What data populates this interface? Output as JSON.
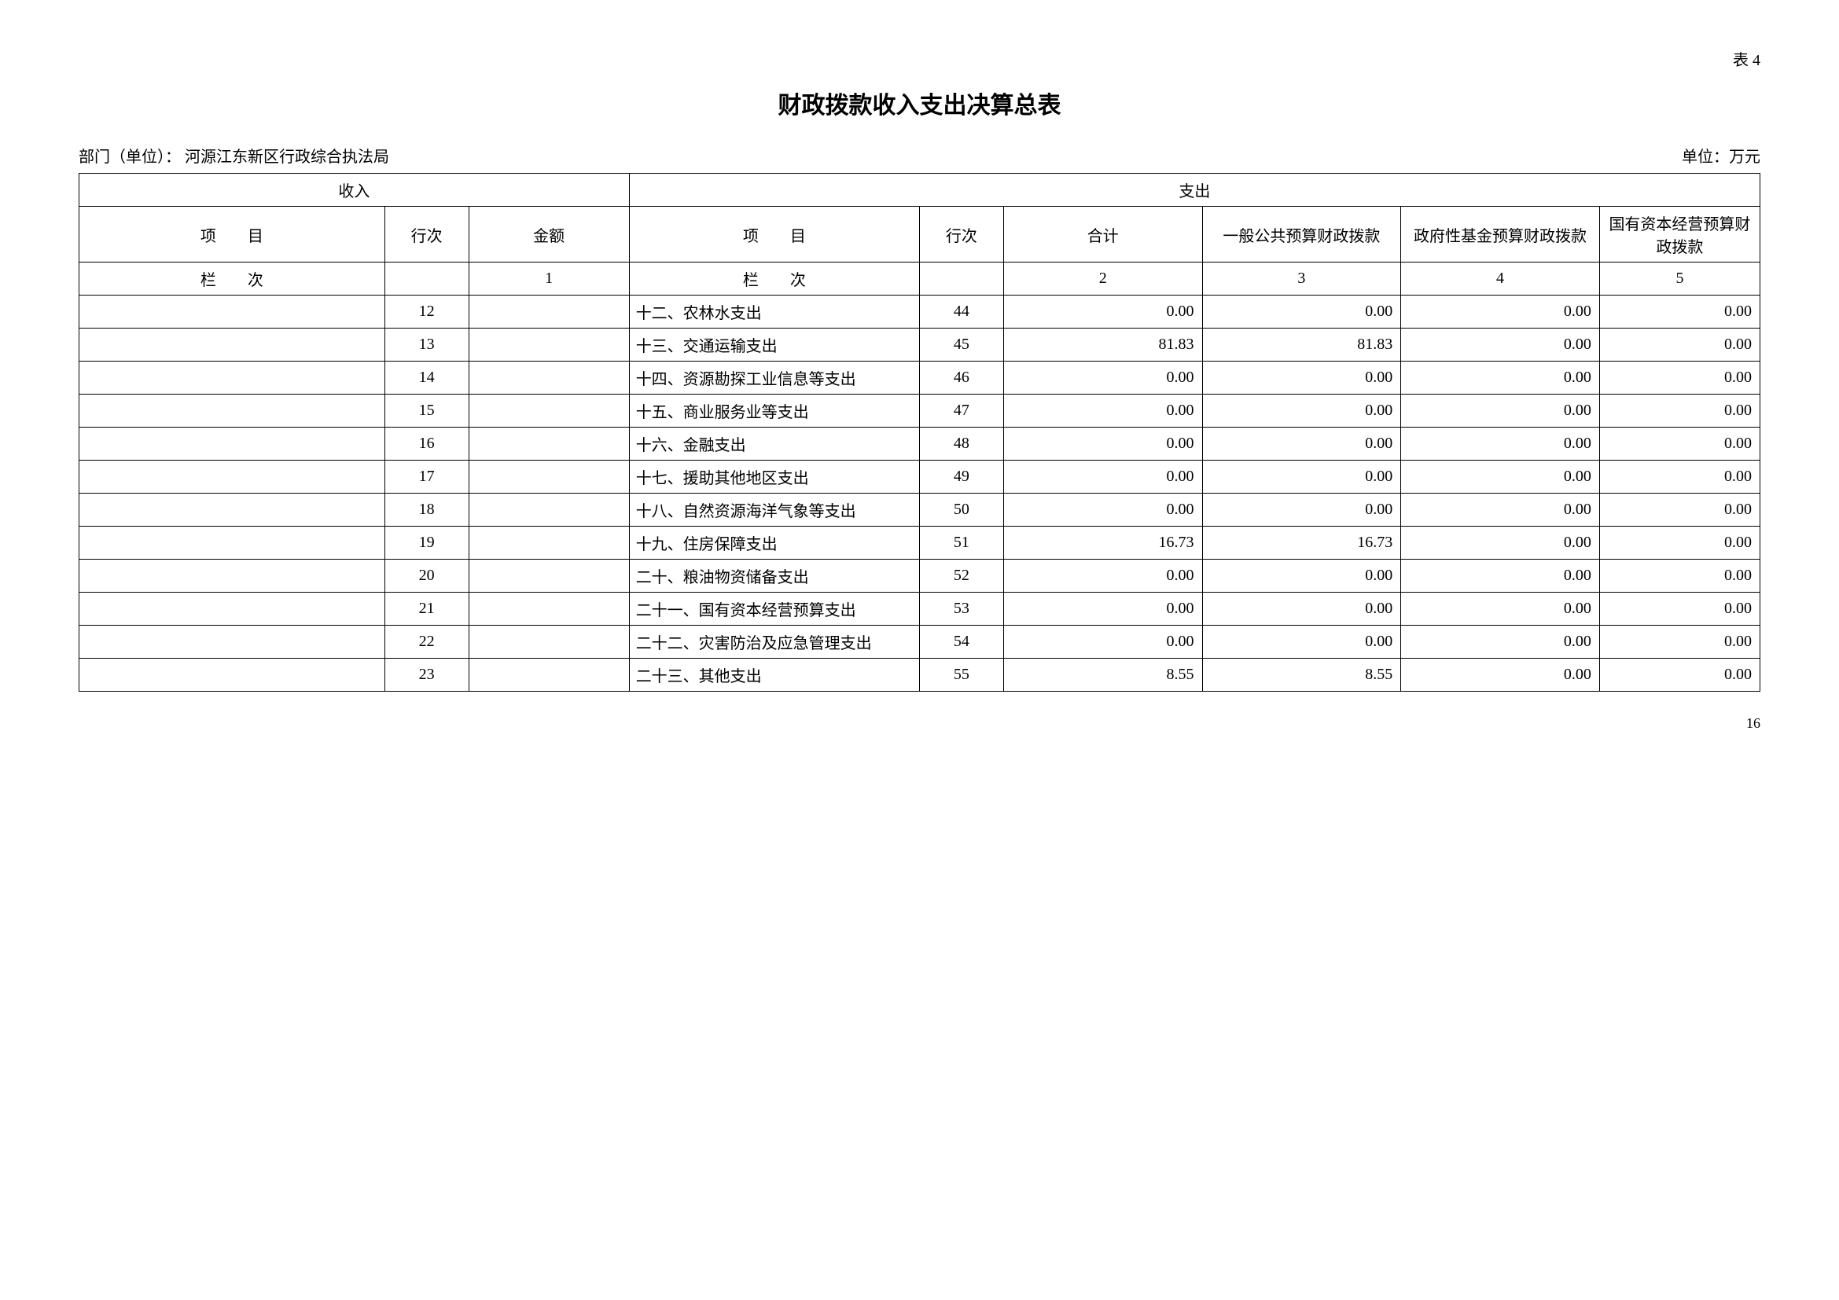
{
  "tableNumber": "表 4",
  "title": "财政拨款收入支出决算总表",
  "department": {
    "label": "部门（单位）：",
    "value": "河源江东新区行政综合执法局"
  },
  "unit": "单位：万元",
  "headers": {
    "income": "收入",
    "expense": "支出",
    "item": "项　　目",
    "rowNum": "行次",
    "amount": "金额",
    "total": "合计",
    "general": "一般公共预算财政拨款",
    "fund": "政府性基金预算财政拨款",
    "capital": "国有资本经营预算财政拨款",
    "columnLabel": "栏　　次",
    "col1": "1",
    "col2": "2",
    "col3": "3",
    "col4": "4",
    "col5": "5"
  },
  "rows": [
    {
      "incomeItem": "",
      "incomeRow": "12",
      "incomeAmount": "",
      "expenseItem": "十二、农林水支出",
      "expenseRow": "44",
      "total": "0.00",
      "general": "0.00",
      "fund": "0.00",
      "capital": "0.00"
    },
    {
      "incomeItem": "",
      "incomeRow": "13",
      "incomeAmount": "",
      "expenseItem": "十三、交通运输支出",
      "expenseRow": "45",
      "total": "81.83",
      "general": "81.83",
      "fund": "0.00",
      "capital": "0.00"
    },
    {
      "incomeItem": "",
      "incomeRow": "14",
      "incomeAmount": "",
      "expenseItem": "十四、资源勘探工业信息等支出",
      "expenseRow": "46",
      "total": "0.00",
      "general": "0.00",
      "fund": "0.00",
      "capital": "0.00"
    },
    {
      "incomeItem": "",
      "incomeRow": "15",
      "incomeAmount": "",
      "expenseItem": "十五、商业服务业等支出",
      "expenseRow": "47",
      "total": "0.00",
      "general": "0.00",
      "fund": "0.00",
      "capital": "0.00"
    },
    {
      "incomeItem": "",
      "incomeRow": "16",
      "incomeAmount": "",
      "expenseItem": "十六、金融支出",
      "expenseRow": "48",
      "total": "0.00",
      "general": "0.00",
      "fund": "0.00",
      "capital": "0.00"
    },
    {
      "incomeItem": "",
      "incomeRow": "17",
      "incomeAmount": "",
      "expenseItem": "十七、援助其他地区支出",
      "expenseRow": "49",
      "total": "0.00",
      "general": "0.00",
      "fund": "0.00",
      "capital": "0.00"
    },
    {
      "incomeItem": "",
      "incomeRow": "18",
      "incomeAmount": "",
      "expenseItem": "十八、自然资源海洋气象等支出",
      "expenseRow": "50",
      "total": "0.00",
      "general": "0.00",
      "fund": "0.00",
      "capital": "0.00"
    },
    {
      "incomeItem": "",
      "incomeRow": "19",
      "incomeAmount": "",
      "expenseItem": "十九、住房保障支出",
      "expenseRow": "51",
      "total": "16.73",
      "general": "16.73",
      "fund": "0.00",
      "capital": "0.00"
    },
    {
      "incomeItem": "",
      "incomeRow": "20",
      "incomeAmount": "",
      "expenseItem": "二十、粮油物资储备支出",
      "expenseRow": "52",
      "total": "0.00",
      "general": "0.00",
      "fund": "0.00",
      "capital": "0.00"
    },
    {
      "incomeItem": "",
      "incomeRow": "21",
      "incomeAmount": "",
      "expenseItem": "二十一、国有资本经营预算支出",
      "expenseRow": "53",
      "total": "0.00",
      "general": "0.00",
      "fund": "0.00",
      "capital": "0.00"
    },
    {
      "incomeItem": "",
      "incomeRow": "22",
      "incomeAmount": "",
      "expenseItem": "二十二、灾害防治及应急管理支出",
      "expenseRow": "54",
      "total": "0.00",
      "general": "0.00",
      "fund": "0.00",
      "capital": "0.00"
    },
    {
      "incomeItem": "",
      "incomeRow": "23",
      "incomeAmount": "",
      "expenseItem": "二十三、其他支出",
      "expenseRow": "55",
      "total": "8.55",
      "general": "8.55",
      "fund": "0.00",
      "capital": "0.00"
    }
  ],
  "pageNumber": "16"
}
